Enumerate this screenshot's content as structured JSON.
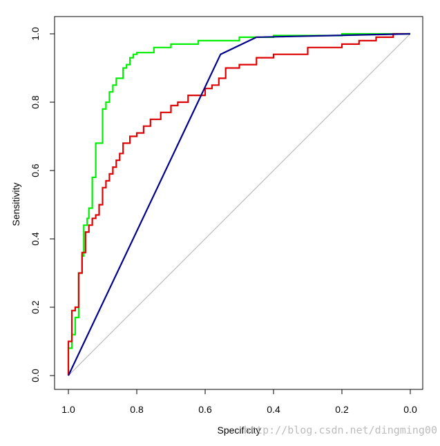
{
  "chart_data": {
    "type": "line",
    "title": "",
    "xlabel": "Specificity",
    "ylabel": "Sensitivity",
    "xlim": [
      1.0,
      0.0
    ],
    "ylim": [
      0.0,
      1.0
    ],
    "x_reversed": true,
    "grid": false,
    "legend": "none",
    "x_ticks": [
      1.0,
      0.8,
      0.6,
      0.4,
      0.2,
      0.0
    ],
    "x_tick_labels": [
      "1.0",
      "0.8",
      "0.6",
      "0.4",
      "0.2",
      "0.0"
    ],
    "y_ticks": [
      0.0,
      0.2,
      0.4,
      0.6,
      0.8,
      1.0
    ],
    "y_tick_labels": [
      "0.0",
      "0.2",
      "0.4",
      "0.6",
      "0.8",
      "1.0"
    ],
    "reference_line": {
      "from": [
        1.0,
        0.0
      ],
      "to": [
        0.0,
        1.0
      ],
      "color": "#b0b0b0"
    },
    "series": [
      {
        "name": "green-roc",
        "color": "#00ee00",
        "points": [
          [
            1.0,
            0.0
          ],
          [
            1.0,
            0.08
          ],
          [
            0.99,
            0.08
          ],
          [
            0.99,
            0.12
          ],
          [
            0.98,
            0.12
          ],
          [
            0.98,
            0.17
          ],
          [
            0.97,
            0.17
          ],
          [
            0.97,
            0.3
          ],
          [
            0.96,
            0.3
          ],
          [
            0.96,
            0.35
          ],
          [
            0.955,
            0.35
          ],
          [
            0.955,
            0.44
          ],
          [
            0.945,
            0.44
          ],
          [
            0.945,
            0.46
          ],
          [
            0.94,
            0.46
          ],
          [
            0.94,
            0.49
          ],
          [
            0.93,
            0.49
          ],
          [
            0.93,
            0.58
          ],
          [
            0.92,
            0.58
          ],
          [
            0.92,
            0.68
          ],
          [
            0.9,
            0.68
          ],
          [
            0.9,
            0.78
          ],
          [
            0.89,
            0.78
          ],
          [
            0.89,
            0.8
          ],
          [
            0.88,
            0.8
          ],
          [
            0.88,
            0.83
          ],
          [
            0.87,
            0.83
          ],
          [
            0.87,
            0.85
          ],
          [
            0.86,
            0.85
          ],
          [
            0.86,
            0.87
          ],
          [
            0.84,
            0.87
          ],
          [
            0.84,
            0.9
          ],
          [
            0.83,
            0.9
          ],
          [
            0.83,
            0.91
          ],
          [
            0.82,
            0.91
          ],
          [
            0.82,
            0.93
          ],
          [
            0.81,
            0.93
          ],
          [
            0.81,
            0.94
          ],
          [
            0.8,
            0.94
          ],
          [
            0.8,
            0.945
          ],
          [
            0.75,
            0.945
          ],
          [
            0.75,
            0.96
          ],
          [
            0.7,
            0.96
          ],
          [
            0.7,
            0.97
          ],
          [
            0.62,
            0.97
          ],
          [
            0.62,
            0.98
          ],
          [
            0.5,
            0.98
          ],
          [
            0.5,
            0.99
          ],
          [
            0.4,
            0.99
          ],
          [
            0.4,
            0.995
          ],
          [
            0.2,
            0.995
          ],
          [
            0.2,
            1.0
          ],
          [
            0.0,
            1.0
          ]
        ]
      },
      {
        "name": "red-roc",
        "color": "#dd0000",
        "points": [
          [
            1.0,
            0.0
          ],
          [
            1.0,
            0.1
          ],
          [
            0.99,
            0.1
          ],
          [
            0.99,
            0.19
          ],
          [
            0.98,
            0.19
          ],
          [
            0.98,
            0.2
          ],
          [
            0.97,
            0.2
          ],
          [
            0.97,
            0.3
          ],
          [
            0.96,
            0.3
          ],
          [
            0.96,
            0.36
          ],
          [
            0.95,
            0.36
          ],
          [
            0.95,
            0.42
          ],
          [
            0.94,
            0.42
          ],
          [
            0.94,
            0.44
          ],
          [
            0.93,
            0.44
          ],
          [
            0.93,
            0.46
          ],
          [
            0.92,
            0.46
          ],
          [
            0.92,
            0.47
          ],
          [
            0.91,
            0.47
          ],
          [
            0.91,
            0.5
          ],
          [
            0.9,
            0.5
          ],
          [
            0.9,
            0.55
          ],
          [
            0.89,
            0.55
          ],
          [
            0.89,
            0.57
          ],
          [
            0.88,
            0.57
          ],
          [
            0.88,
            0.59
          ],
          [
            0.87,
            0.59
          ],
          [
            0.87,
            0.61
          ],
          [
            0.86,
            0.61
          ],
          [
            0.86,
            0.63
          ],
          [
            0.85,
            0.63
          ],
          [
            0.85,
            0.65
          ],
          [
            0.84,
            0.65
          ],
          [
            0.84,
            0.68
          ],
          [
            0.82,
            0.68
          ],
          [
            0.82,
            0.7
          ],
          [
            0.8,
            0.7
          ],
          [
            0.8,
            0.71
          ],
          [
            0.78,
            0.71
          ],
          [
            0.78,
            0.73
          ],
          [
            0.76,
            0.73
          ],
          [
            0.76,
            0.75
          ],
          [
            0.73,
            0.75
          ],
          [
            0.73,
            0.77
          ],
          [
            0.7,
            0.77
          ],
          [
            0.7,
            0.79
          ],
          [
            0.68,
            0.79
          ],
          [
            0.68,
            0.8
          ],
          [
            0.65,
            0.8
          ],
          [
            0.65,
            0.82
          ],
          [
            0.6,
            0.82
          ],
          [
            0.6,
            0.84
          ],
          [
            0.58,
            0.84
          ],
          [
            0.58,
            0.85
          ],
          [
            0.56,
            0.85
          ],
          [
            0.56,
            0.87
          ],
          [
            0.54,
            0.87
          ],
          [
            0.54,
            0.9
          ],
          [
            0.5,
            0.9
          ],
          [
            0.5,
            0.91
          ],
          [
            0.45,
            0.91
          ],
          [
            0.45,
            0.93
          ],
          [
            0.4,
            0.93
          ],
          [
            0.4,
            0.94
          ],
          [
            0.3,
            0.94
          ],
          [
            0.3,
            0.96
          ],
          [
            0.2,
            0.96
          ],
          [
            0.2,
            0.97
          ],
          [
            0.15,
            0.97
          ],
          [
            0.15,
            0.98
          ],
          [
            0.1,
            0.98
          ],
          [
            0.1,
            0.99
          ],
          [
            0.05,
            0.99
          ],
          [
            0.05,
            1.0
          ],
          [
            0.0,
            1.0
          ]
        ]
      },
      {
        "name": "blue-roc",
        "color": "#00008b",
        "points": [
          [
            1.0,
            0.0
          ],
          [
            0.555,
            0.94
          ],
          [
            0.45,
            0.99
          ],
          [
            0.0,
            1.0
          ]
        ]
      }
    ]
  },
  "watermark": "http://blog.csdn.net/dingming00"
}
